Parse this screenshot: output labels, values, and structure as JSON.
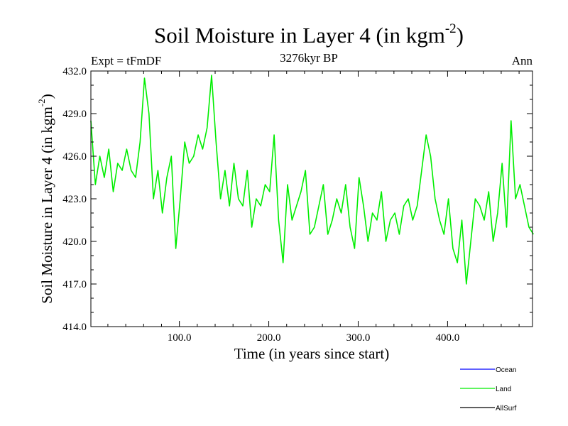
{
  "chart_data": {
    "type": "line",
    "title": "Soil Moisture in Layer 4 (in kgm",
    "title_sup": "-2",
    "title_close": ")",
    "subtitle": "3276kyr BP",
    "left_label": "Expt = tFmDF",
    "right_label": "Ann",
    "xlabel": "Time (in years since start)",
    "ylabel": "Soil Moisture in Layer 4 (in kgm",
    "ylabel_sup": "-2",
    "ylabel_close": ")",
    "xlim": [
      1,
      495
    ],
    "ylim": [
      414.0,
      432.0
    ],
    "xticks": [
      100,
      200,
      300,
      400
    ],
    "xtick_labels": [
      "100.0",
      "200.0",
      "300.0",
      "400.0"
    ],
    "yticks": [
      414,
      417,
      420,
      423,
      426,
      429,
      432
    ],
    "ytick_labels": [
      "414.0",
      "417.0",
      "420.0",
      "423.0",
      "426.0",
      "429.0",
      "432.0"
    ],
    "legend": [
      {
        "name": "Ocean",
        "color": "#0000ff"
      },
      {
        "name": "Land",
        "color": "#00ee00"
      },
      {
        "name": "AllSurf",
        "color": "#000000"
      }
    ],
    "series": [
      {
        "name": "Land",
        "color": "#00ee00",
        "x_start": 1,
        "x_step": 5,
        "values": [
          428.5,
          424.0,
          426.0,
          424.5,
          426.5,
          423.5,
          425.5,
          425.0,
          426.5,
          425.0,
          424.5,
          427.0,
          431.5,
          429.0,
          423.0,
          425.0,
          422.0,
          424.5,
          426.0,
          419.5,
          423.0,
          427.0,
          425.5,
          426.0,
          427.5,
          426.5,
          428.0,
          431.7,
          427.0,
          423.0,
          425.0,
          422.5,
          425.5,
          423.0,
          422.5,
          425.0,
          421.0,
          423.0,
          422.5,
          424.0,
          423.5,
          427.5,
          421.5,
          418.5,
          424.0,
          421.5,
          422.5,
          423.5,
          425.0,
          420.5,
          421.0,
          422.5,
          424.0,
          420.5,
          421.5,
          423.0,
          422.0,
          424.0,
          421.0,
          419.5,
          424.5,
          422.5,
          420.0,
          422.0,
          421.5,
          423.5,
          420.0,
          421.5,
          422.0,
          420.5,
          422.5,
          423.0,
          421.5,
          422.5,
          425.0,
          427.5,
          426.0,
          423.0,
          421.5,
          420.5,
          423.0,
          419.5,
          418.5,
          421.5,
          417.0,
          420.0,
          423.0,
          422.5,
          421.5,
          423.5,
          420.0,
          422.0,
          425.5,
          421.0,
          428.5,
          423.0,
          424.0,
          422.5,
          421.0,
          420.5
        ]
      }
    ]
  }
}
